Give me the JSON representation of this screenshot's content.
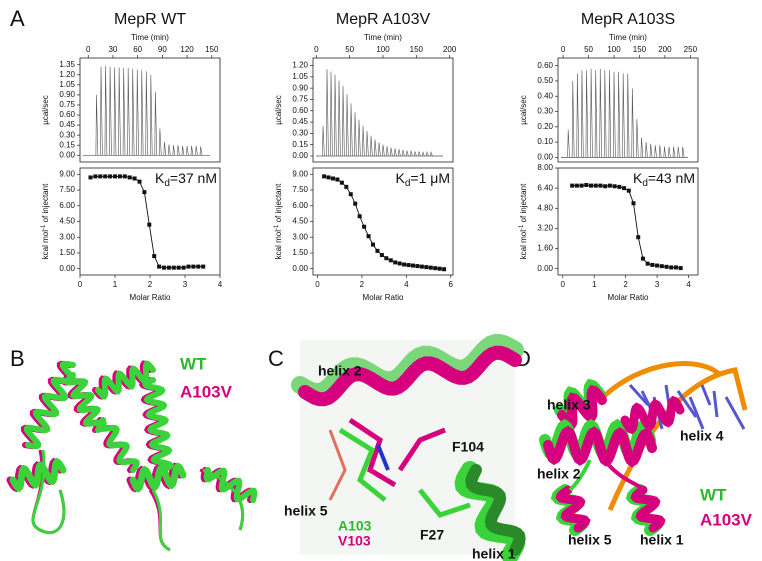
{
  "panel_labels": [
    "A",
    "B",
    "C",
    "D"
  ],
  "chart_data": [
    {
      "type": "spikes",
      "title": "MepR WT",
      "xlabel": "Time (min)",
      "ylabel": "µcal/sec",
      "color": "#555555",
      "x": [
        10,
        15.5,
        21,
        26.5,
        32,
        37.5,
        43,
        48.5,
        54,
        59.5,
        65,
        70.5,
        76,
        81.5,
        87,
        92.5,
        98,
        103.5,
        109,
        114.5,
        120,
        125.5,
        131,
        136.5
      ],
      "values": [
        0.9,
        1.32,
        1.33,
        1.32,
        1.31,
        1.31,
        1.3,
        1.3,
        1.29,
        1.28,
        1.27,
        1.25,
        1.2,
        0.95,
        0.4,
        0.2,
        0.16,
        0.15,
        0.15,
        0.14,
        0.14,
        0.14,
        0.14,
        0.13
      ],
      "xlim": [
        -10,
        160
      ],
      "ylim": [
        -0.1,
        1.45
      ],
      "xticks": [
        0,
        30,
        60,
        90,
        120,
        150
      ],
      "yticks": [
        {
          "value": 0,
          "label": "0.00"
        },
        {
          "value": 0.15,
          "label": "0.15"
        },
        {
          "value": 0.3,
          "label": "0.30"
        },
        {
          "value": 0.45,
          "label": "0.45"
        },
        {
          "value": 0.6,
          "label": "0.60"
        },
        {
          "value": 0.75,
          "label": "0.75"
        },
        {
          "value": 0.9,
          "label": "0.90"
        },
        {
          "value": 1.05,
          "label": "1.05"
        },
        {
          "value": 1.2,
          "label": "1.20"
        },
        {
          "value": 1.35,
          "label": "1.35"
        }
      ]
    },
    {
      "type": "line",
      "xlabel": "Molar Ratio",
      "ylabel": {
        "text": "kcal mol",
        "superscript": "-1",
        "after": " of injectant"
      },
      "color": "#111111",
      "marker": "square",
      "annotation": {
        "symbol": "K",
        "subscript": "d",
        "text": "=37 nM"
      },
      "x": [
        0.3,
        0.44,
        0.58,
        0.72,
        0.86,
        1.0,
        1.14,
        1.28,
        1.42,
        1.56,
        1.7,
        1.84,
        1.98,
        2.12,
        2.26,
        2.4,
        2.54,
        2.68,
        2.82,
        2.96,
        3.1,
        3.24,
        3.38,
        3.52
      ],
      "values": [
        8.7,
        8.8,
        8.8,
        8.8,
        8.8,
        8.8,
        8.8,
        8.8,
        8.7,
        8.6,
        8.3,
        7.3,
        4.2,
        1.2,
        0.2,
        0.1,
        0.1,
        0.1,
        0.1,
        0.1,
        0.2,
        0.2,
        0.2,
        0.2
      ],
      "xlim": [
        0,
        4
      ],
      "ylim": [
        -0.6,
        9.6
      ],
      "xticks": [
        0,
        1,
        2,
        3,
        4
      ],
      "yticks": [
        {
          "value": 0,
          "label": "0.00"
        },
        {
          "value": 1.5,
          "label": "1.50"
        },
        {
          "value": 3,
          "label": "3.00"
        },
        {
          "value": 4.5,
          "label": "4.50"
        },
        {
          "value": 6,
          "label": "6.00"
        },
        {
          "value": 7.5,
          "label": "7.50"
        },
        {
          "value": 9,
          "label": "9.00"
        }
      ]
    },
    {
      "type": "spikes",
      "title": "MepR A103V",
      "xlabel": "Time (min)",
      "ylabel": "µcal/sec",
      "color": "#555555",
      "x": [
        10,
        16,
        22,
        28,
        34,
        40,
        46,
        52,
        58,
        64,
        70,
        76,
        82,
        88,
        94,
        100,
        106,
        112,
        118,
        124,
        130,
        136,
        142,
        148,
        154,
        160,
        166,
        172
      ],
      "values": [
        0.4,
        1.15,
        1.12,
        1.08,
        1.0,
        0.93,
        0.82,
        0.7,
        0.58,
        0.48,
        0.4,
        0.33,
        0.27,
        0.22,
        0.18,
        0.15,
        0.13,
        0.11,
        0.1,
        0.09,
        0.08,
        0.07,
        0.07,
        0.06,
        0.06,
        0.05,
        0.05,
        0.05
      ],
      "xlim": [
        -5,
        205
      ],
      "ylim": [
        -0.08,
        1.3
      ],
      "xticks": [
        0,
        50,
        100,
        150,
        200
      ],
      "yticks": [
        {
          "value": 0,
          "label": "0.00"
        },
        {
          "value": 0.15,
          "label": "0.15"
        },
        {
          "value": 0.3,
          "label": "0.30"
        },
        {
          "value": 0.45,
          "label": "0.45"
        },
        {
          "value": 0.6,
          "label": "0.60"
        },
        {
          "value": 0.75,
          "label": "0.75"
        },
        {
          "value": 0.9,
          "label": "0.90"
        },
        {
          "value": 1.05,
          "label": "1.05"
        },
        {
          "value": 1.2,
          "label": "1.20"
        }
      ]
    },
    {
      "type": "line",
      "xlabel": "Molar Ratio",
      "ylabel": {
        "text": "kcal mol",
        "superscript": "-1",
        "after": " of injectant"
      },
      "color": "#111111",
      "marker": "square",
      "annotation": {
        "symbol": "K",
        "subscript": "d",
        "text": "=1 μM"
      },
      "x": [
        0.3,
        0.5,
        0.7,
        0.9,
        1.1,
        1.3,
        1.5,
        1.7,
        1.9,
        2.1,
        2.3,
        2.5,
        2.7,
        2.9,
        3.1,
        3.3,
        3.5,
        3.7,
        3.9,
        4.1,
        4.3,
        4.5,
        4.7,
        4.9,
        5.1,
        5.3,
        5.5,
        5.7
      ],
      "values": [
        8.8,
        8.7,
        8.6,
        8.5,
        8.2,
        7.8,
        7.1,
        6.2,
        5.0,
        4.0,
        3.1,
        2.3,
        1.7,
        1.3,
        1.0,
        0.8,
        0.6,
        0.5,
        0.4,
        0.35,
        0.3,
        0.25,
        0.2,
        0.15,
        0.1,
        0.05,
        0.0,
        -0.05
      ],
      "xlim": [
        -0.2,
        6.1
      ],
      "ylim": [
        -0.6,
        9.6
      ],
      "xticks": [
        0,
        2,
        4,
        6
      ],
      "yticks": [
        {
          "value": 0,
          "label": "0.00"
        },
        {
          "value": 1.5,
          "label": "1.50"
        },
        {
          "value": 3,
          "label": "3.00"
        },
        {
          "value": 4.5,
          "label": "4.50"
        },
        {
          "value": 6,
          "label": "6.00"
        },
        {
          "value": 7.5,
          "label": "7.50"
        },
        {
          "value": 9,
          "label": "9.00"
        }
      ]
    },
    {
      "type": "spikes",
      "title": "MepR A103S",
      "xlabel": "Time (min)",
      "ylabel": "µcal/sec",
      "color": "#555555",
      "x": [
        10,
        19,
        28,
        37,
        46,
        55,
        64,
        73,
        82,
        91,
        100,
        109,
        118,
        127,
        136,
        145,
        154,
        163,
        172,
        181,
        190,
        199,
        208,
        217,
        226,
        235
      ],
      "values": [
        0.18,
        0.5,
        0.55,
        0.57,
        0.57,
        0.58,
        0.57,
        0.58,
        0.57,
        0.57,
        0.56,
        0.56,
        0.55,
        0.55,
        0.45,
        0.25,
        0.13,
        0.1,
        0.09,
        0.08,
        0.08,
        0.07,
        0.07,
        0.07,
        0.07,
        0.07
      ],
      "xlim": [
        -10,
        265
      ],
      "ylim": [
        -0.03,
        0.65
      ],
      "xticks": [
        0,
        50,
        100,
        150,
        200,
        250
      ],
      "yticks": [
        {
          "value": 0,
          "label": "0.00"
        },
        {
          "value": 0.1,
          "label": "0.10"
        },
        {
          "value": 0.2,
          "label": "0.20"
        },
        {
          "value": 0.3,
          "label": "0.30"
        },
        {
          "value": 0.4,
          "label": "0.40"
        },
        {
          "value": 0.5,
          "label": "0.50"
        },
        {
          "value": 0.6,
          "label": "0.60"
        }
      ]
    },
    {
      "type": "line",
      "xlabel": "Molar Ratio",
      "ylabel": {
        "text": "kcal mol",
        "superscript": "-1",
        "after": " of injectant"
      },
      "color": "#111111",
      "marker": "square",
      "annotation": {
        "symbol": "K",
        "subscript": "d",
        "text": "=43 nM"
      },
      "x": [
        0.3,
        0.45,
        0.6,
        0.75,
        0.9,
        1.05,
        1.2,
        1.35,
        1.5,
        1.65,
        1.8,
        1.95,
        2.1,
        2.25,
        2.4,
        2.55,
        2.7,
        2.85,
        3.0,
        3.15,
        3.3,
        3.45,
        3.6,
        3.75
      ],
      "values": [
        6.6,
        6.6,
        6.6,
        6.65,
        6.6,
        6.6,
        6.6,
        6.55,
        6.6,
        6.55,
        6.5,
        6.4,
        6.2,
        5.2,
        2.5,
        0.8,
        0.4,
        0.3,
        0.25,
        0.2,
        0.15,
        0.1,
        0.1,
        0.05
      ],
      "xlim": [
        -0.15,
        4.3
      ],
      "ylim": [
        -0.5,
        8.0
      ],
      "xticks": [
        0,
        1,
        2,
        3,
        4
      ],
      "yticks": [
        {
          "value": 0,
          "label": "0.00"
        },
        {
          "value": 1.6,
          "label": "1.60"
        },
        {
          "value": 3.2,
          "label": "3.20"
        },
        {
          "value": 4.8,
          "label": "4.80"
        },
        {
          "value": 6.4,
          "label": "6.40"
        },
        {
          "value": 8,
          "label": "8.00"
        }
      ]
    }
  ],
  "structure_b": {
    "labels": [
      "WT",
      "A103V"
    ]
  },
  "structure_c": {
    "labels": [
      "helix 2",
      "F104",
      "helix 5",
      "A103",
      "V103",
      "F27",
      "helix 1"
    ]
  },
  "structure_d": {
    "labels": [
      "helix 3",
      "helix 4",
      "helix 2",
      "WT",
      "A103V",
      "helix 5",
      "helix 1"
    ]
  }
}
